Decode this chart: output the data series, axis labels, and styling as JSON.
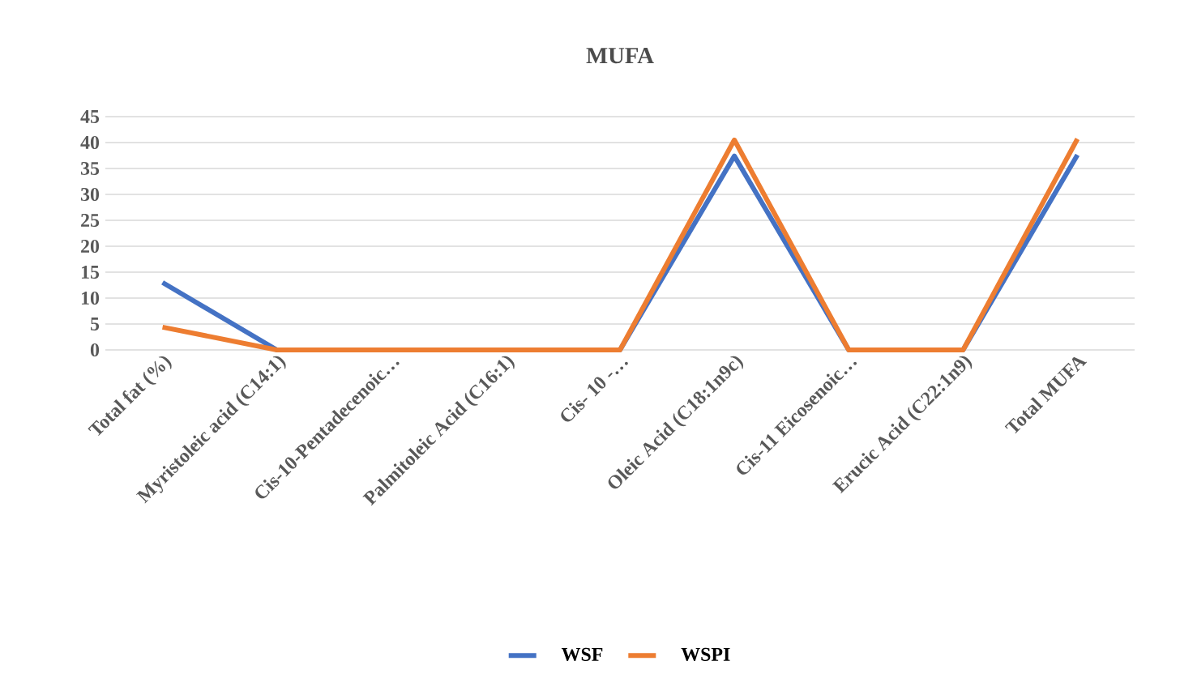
{
  "chart_data": {
    "type": "line",
    "title": "MUFA",
    "categories": [
      "Total fat (%)",
      "Myristoleic acid (C14:1)",
      "Cis-10-Pentadecenoic…",
      "Palmitoleic Acid (C16:1)",
      "Cis- 10 -…",
      "Oleic Acid (C18:1n9c)",
      "Cis-11 Eicosenoic…",
      "Erucic Acid (C22:1n9)",
      "Total MUFA"
    ],
    "series": [
      {
        "name": "WSF",
        "color": "#4472c4",
        "values": [
          13,
          0,
          0,
          0,
          0,
          37.4,
          0,
          0,
          37.6
        ]
      },
      {
        "name": "WSPI",
        "color": "#ed7d31",
        "values": [
          4.4,
          0,
          0,
          0,
          0,
          40.5,
          0,
          0,
          40.7
        ]
      }
    ],
    "ylim": [
      0,
      45
    ],
    "yticks": [
      0,
      5,
      10,
      15,
      20,
      25,
      30,
      35,
      40,
      45
    ],
    "grid": "y",
    "legend": "bottom",
    "marker": "none",
    "line_style": "solid"
  }
}
